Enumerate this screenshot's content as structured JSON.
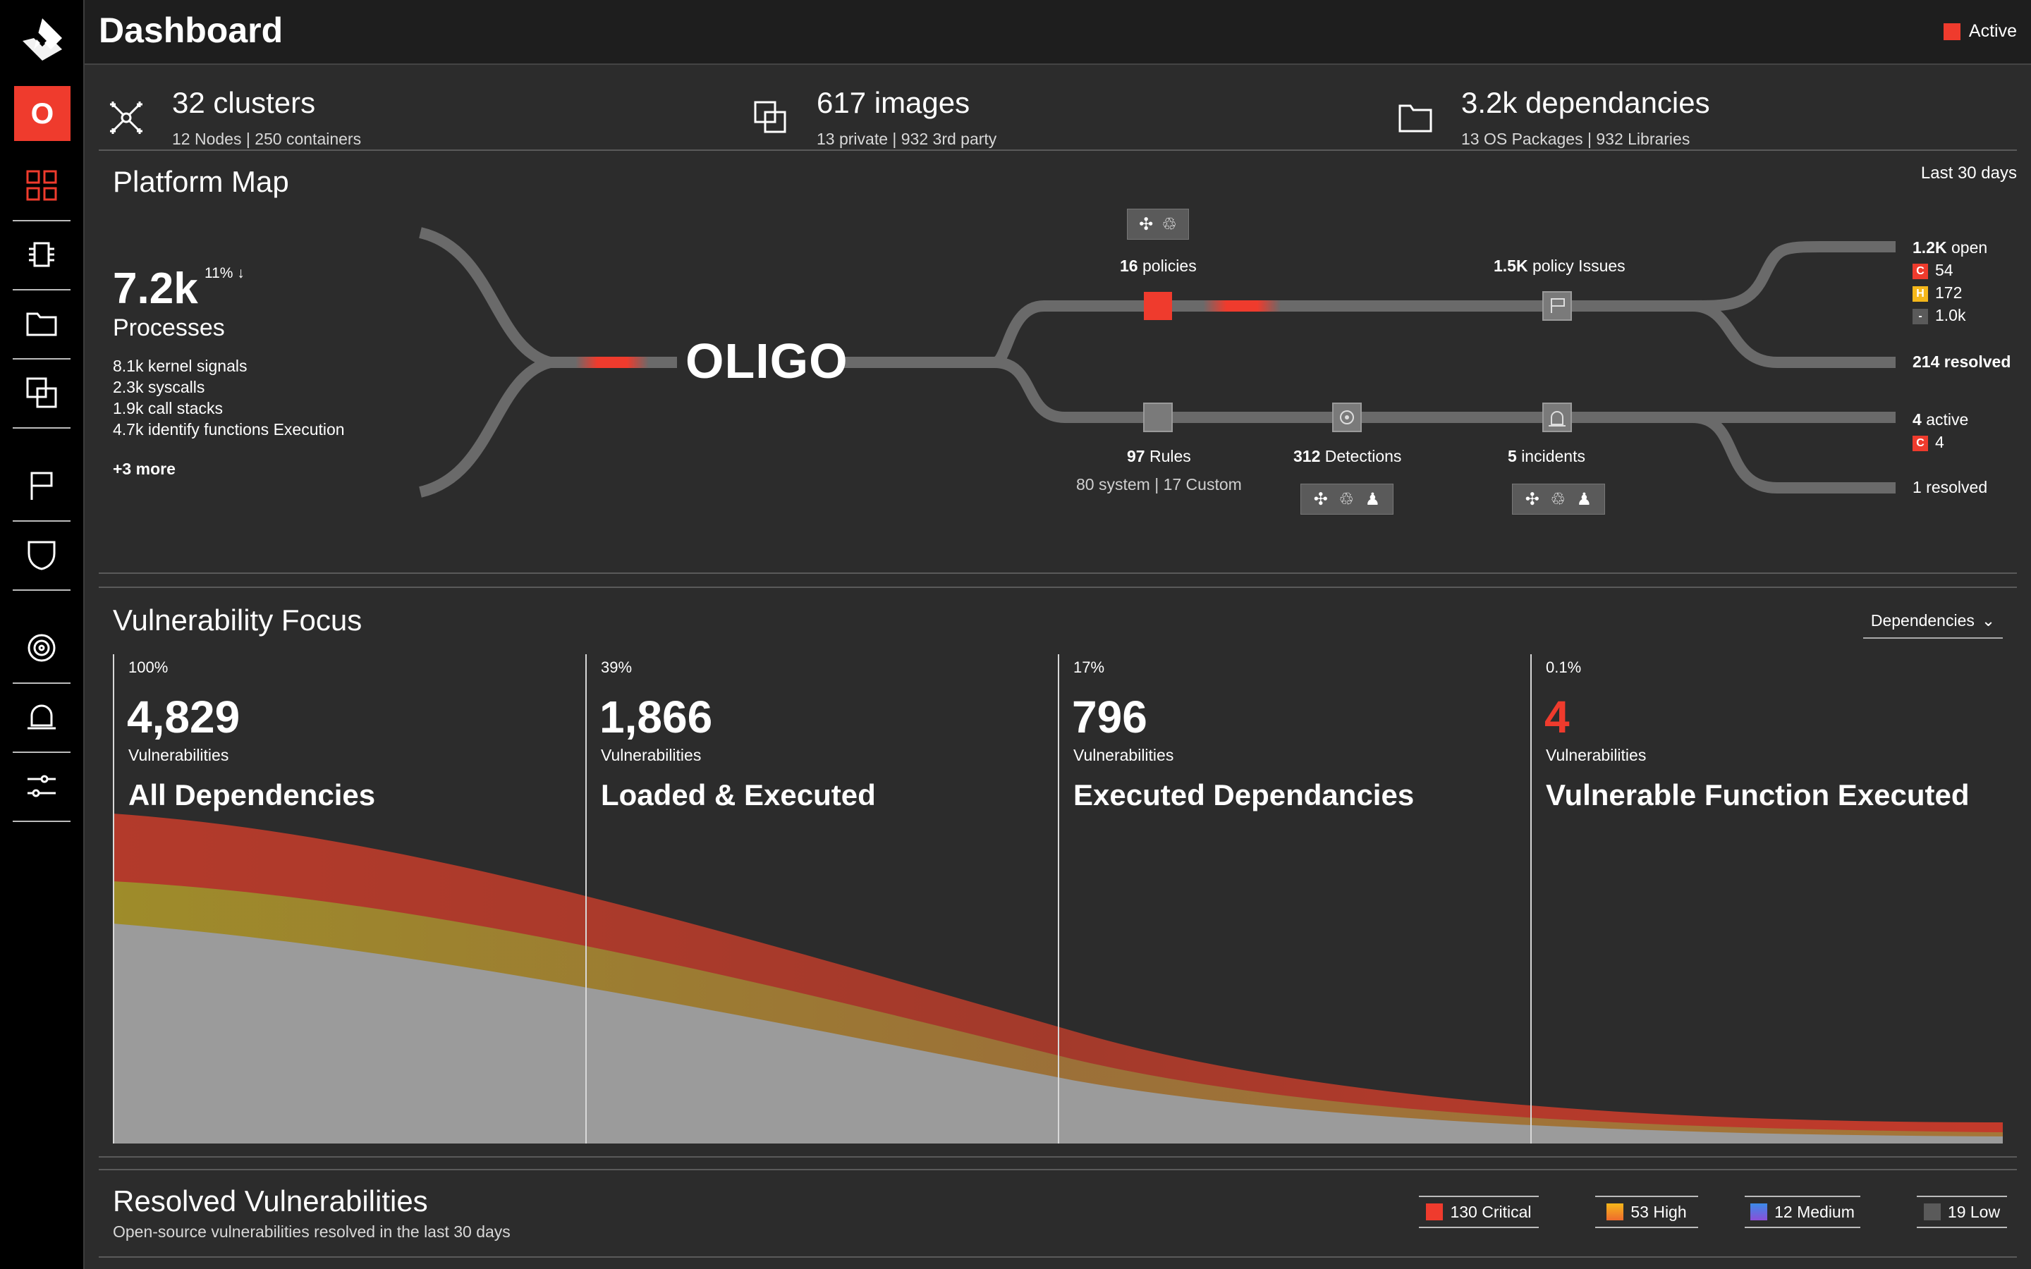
{
  "header": {
    "title": "Dashboard",
    "status": "Active",
    "status_color": "#ef3b2d"
  },
  "sidebar": {
    "org_initial": "O",
    "items": [
      {
        "icon": "grid-icon"
      },
      {
        "icon": "chip-icon"
      },
      {
        "icon": "folder-icon"
      },
      {
        "icon": "images-icon"
      },
      {
        "icon": "flag-icon"
      },
      {
        "icon": "shield-icon"
      },
      {
        "icon": "target-icon"
      },
      {
        "icon": "bell-icon"
      },
      {
        "icon": "sliders-icon"
      }
    ]
  },
  "stats": [
    {
      "icon": "cluster-icon",
      "title": "32 clusters",
      "sub": "12 Nodes | 250 containers"
    },
    {
      "icon": "images-icon",
      "title": "617 images",
      "sub": "13 private | 932 3rd party"
    },
    {
      "icon": "folder-icon",
      "title": "3.2k dependancies",
      "sub": "13 OS Packages | 932 Libraries"
    }
  ],
  "platform_map": {
    "title": "Platform Map",
    "range": "Last 30 days",
    "processes": {
      "value": "7.2k",
      "delta": "11% ↓",
      "label": "Processes",
      "details": [
        "8.1k kernel signals",
        "2.3k syscalls",
        "1.9k call stacks",
        "4.7k identify functions Execution"
      ],
      "more": "+3 more"
    },
    "center": "OLIGO",
    "policies": {
      "count": "16",
      "label": "policies"
    },
    "policy_issues": {
      "count": "1.5K",
      "label": "policy Issues"
    },
    "rules": {
      "count": "97",
      "label": "Rules",
      "sub": "80 system | 17 Custom"
    },
    "detections": {
      "count": "312",
      "label": "Detections"
    },
    "incidents": {
      "count": "5",
      "label": "incidents"
    },
    "issues_summary": {
      "open_count": "1.2K",
      "open_label": "open",
      "critical": "54",
      "high": "172",
      "low": "1.0k",
      "resolved": "214 resolved"
    },
    "incidents_summary": {
      "active_count": "4",
      "active_label": "active",
      "critical": "4",
      "resolved": "1 resolved"
    },
    "badges": {
      "critical": "C",
      "high": "H",
      "low": "-"
    }
  },
  "vulnerability_focus": {
    "title": "Vulnerability Focus",
    "filter": "Dependencies",
    "columns": [
      {
        "pct": "100%",
        "value": "4,829",
        "label": "Vulnerabilities",
        "title": "All Dependencies",
        "highlight": false
      },
      {
        "pct": "39%",
        "value": "1,866",
        "label": "Vulnerabilities",
        "title": "Loaded & Executed",
        "highlight": false
      },
      {
        "pct": "17%",
        "value": "796",
        "label": "Vulnerabilities",
        "title": "Executed Dependancies",
        "highlight": false
      },
      {
        "pct": "0.1%",
        "value": "4",
        "label": "Vulnerabilities",
        "title": "Vulnerable Function Executed",
        "highlight": true
      }
    ]
  },
  "resolved": {
    "title": "Resolved Vulnerabilities",
    "subtitle": "Open-source vulnerabilities resolved in the last 30 days",
    "legend": [
      {
        "label": "130 Critical",
        "color": "#ef3b2d"
      },
      {
        "label": "53 High",
        "color": "#f5b71a"
      },
      {
        "label": "12 Medium",
        "color": "#6b63e8"
      },
      {
        "label": "19 Low",
        "color": "#5a5a5a"
      }
    ]
  }
}
